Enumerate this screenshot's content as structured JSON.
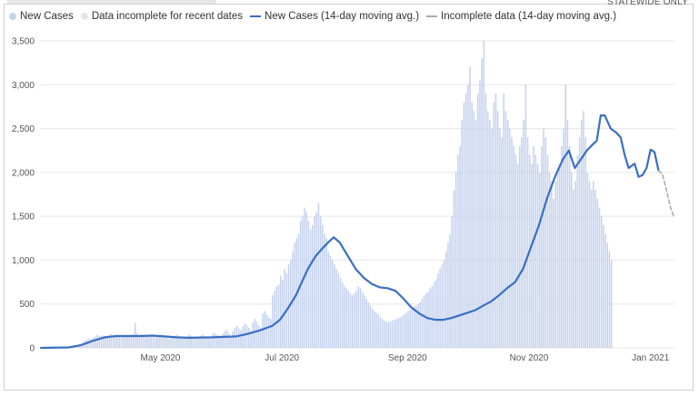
{
  "header": {
    "corner_label": "STATEWIDE ONLY"
  },
  "legend": [
    {
      "label": "New Cases",
      "kind": "dot",
      "color": "#c5d2ee"
    },
    {
      "label": "Data incomplete for recent dates",
      "kind": "dot",
      "color": "#e3e6ee"
    },
    {
      "label": "New Cases (14-day moving avg.)",
      "kind": "line",
      "color": "#3a6fc4"
    },
    {
      "label": "Incomplete data (14-day moving avg.)",
      "kind": "dash",
      "color": "#aaaaaa"
    }
  ],
  "colors": {
    "bar": "#c5d2ee",
    "bar_incomplete": "#e3e6ee",
    "line": "#3a6fc4",
    "line_incomplete": "#aaaaaa",
    "grid": "#e6e6e6"
  },
  "chart_data": {
    "type": "bar",
    "title": "",
    "xlabel": "",
    "ylabel": "",
    "ylim": [
      0,
      3500
    ],
    "yticks": [
      0,
      500,
      1000,
      1500,
      2000,
      2500,
      3000,
      3500
    ],
    "ytick_labels": [
      "0",
      "500",
      "1,000",
      "1,500",
      "2,000",
      "2,500",
      "3,000",
      "3,500"
    ],
    "x_ticks": [
      {
        "label": "May 2020",
        "day": 60
      },
      {
        "label": "Jul 2020",
        "day": 121
      },
      {
        "label": "Sep 2020",
        "day": 184
      },
      {
        "label": "Nov 2020",
        "day": 245
      },
      {
        "label": "Jan 2021",
        "day": 306
      }
    ],
    "x_range_days": [
      0,
      318
    ],
    "incomplete_from_day": 310,
    "series": [
      {
        "name": "New Cases (14-day moving avg.)",
        "type": "line",
        "points": [
          [
            0,
            0
          ],
          [
            14,
            5
          ],
          [
            20,
            30
          ],
          [
            26,
            80
          ],
          [
            32,
            120
          ],
          [
            38,
            135
          ],
          [
            44,
            135
          ],
          [
            50,
            135
          ],
          [
            56,
            140
          ],
          [
            62,
            130
          ],
          [
            68,
            120
          ],
          [
            74,
            115
          ],
          [
            80,
            118
          ],
          [
            86,
            120
          ],
          [
            92,
            125
          ],
          [
            98,
            130
          ],
          [
            104,
            160
          ],
          [
            110,
            200
          ],
          [
            116,
            250
          ],
          [
            120,
            320
          ],
          [
            124,
            450
          ],
          [
            128,
            600
          ],
          [
            131,
            750
          ],
          [
            134,
            900
          ],
          [
            138,
            1050
          ],
          [
            142,
            1150
          ],
          [
            145,
            1220
          ],
          [
            147,
            1260
          ],
          [
            150,
            1200
          ],
          [
            154,
            1050
          ],
          [
            158,
            900
          ],
          [
            162,
            800
          ],
          [
            166,
            730
          ],
          [
            170,
            690
          ],
          [
            174,
            680
          ],
          [
            178,
            650
          ],
          [
            182,
            560
          ],
          [
            186,
            460
          ],
          [
            190,
            390
          ],
          [
            194,
            340
          ],
          [
            198,
            320
          ],
          [
            202,
            320
          ],
          [
            206,
            340
          ],
          [
            210,
            370
          ],
          [
            214,
            400
          ],
          [
            218,
            430
          ],
          [
            222,
            480
          ],
          [
            226,
            530
          ],
          [
            230,
            600
          ],
          [
            234,
            680
          ],
          [
            238,
            750
          ],
          [
            242,
            900
          ],
          [
            246,
            1150
          ],
          [
            250,
            1400
          ],
          [
            254,
            1700
          ],
          [
            258,
            1950
          ],
          [
            262,
            2150
          ],
          [
            265,
            2250
          ],
          [
            268,
            2050
          ],
          [
            271,
            2150
          ],
          [
            274,
            2250
          ],
          [
            277,
            2320
          ],
          [
            279,
            2360
          ],
          [
            281,
            2650
          ],
          [
            283,
            2650
          ],
          [
            286,
            2500
          ],
          [
            289,
            2450
          ],
          [
            291,
            2400
          ],
          [
            293,
            2200
          ],
          [
            295,
            2050
          ],
          [
            298,
            2100
          ],
          [
            300,
            1950
          ],
          [
            302,
            1970
          ],
          [
            304,
            2050
          ],
          [
            306,
            2260
          ],
          [
            308,
            2230
          ],
          [
            310,
            2020
          ]
        ]
      },
      {
        "name": "Incomplete data (14-day moving avg.)",
        "type": "line",
        "points": [
          [
            310,
            2020
          ],
          [
            312,
            1980
          ],
          [
            314,
            1800
          ],
          [
            316,
            1600
          ],
          [
            318,
            1480
          ]
        ]
      },
      {
        "name": "New Cases",
        "type": "bar",
        "values": [
          0,
          0,
          0,
          0,
          0,
          0,
          0,
          0,
          0,
          0,
          0,
          0,
          0,
          0,
          5,
          10,
          15,
          25,
          35,
          45,
          55,
          70,
          85,
          95,
          110,
          100,
          120,
          130,
          150,
          140,
          135,
          140,
          130,
          120,
          150,
          160,
          140,
          130,
          140,
          135,
          150,
          145,
          130,
          140,
          145,
          150,
          160,
          280,
          170,
          140,
          160,
          150,
          130,
          140,
          145,
          150,
          130,
          120,
          135,
          140,
          145,
          120,
          130,
          110,
          100,
          120,
          130,
          140,
          150,
          130,
          100,
          120,
          110,
          130,
          150,
          140,
          130,
          120,
          110,
          120,
          140,
          150,
          130,
          110,
          120,
          130,
          160,
          170,
          150,
          140,
          130,
          160,
          190,
          200,
          170,
          140,
          190,
          230,
          250,
          220,
          200,
          240,
          280,
          260,
          230,
          200,
          290,
          330,
          300,
          260,
          230,
          390,
          420,
          380,
          350,
          330,
          600,
          650,
          700,
          720,
          820,
          780,
          900,
          850,
          950,
          1000,
          1100,
          1200,
          1250,
          1300,
          1450,
          1500,
          1600,
          1550,
          1450,
          1350,
          1400,
          1500,
          1550,
          1650,
          1500,
          1400,
          1300,
          1250,
          1100,
          1050,
          1000,
          950,
          900,
          850,
          800,
          750,
          700,
          680,
          650,
          620,
          600,
          620,
          650,
          700,
          680,
          640,
          600,
          560,
          520,
          480,
          450,
          420,
          400,
          380,
          350,
          330,
          310,
          300,
          290,
          300,
          310,
          320,
          330,
          340,
          350,
          360,
          380,
          400,
          420,
          440,
          460,
          470,
          480,
          500,
          520,
          560,
          600,
          620,
          640,
          680,
          700,
          750,
          780,
          850,
          900,
          950,
          1000,
          1100,
          1200,
          1300,
          1500,
          1800,
          2000,
          2200,
          2300,
          2600,
          2800,
          2900,
          3000,
          3200,
          2800,
          2700,
          2600,
          2900,
          3050,
          3300,
          3500,
          2900,
          2700,
          2600,
          2500,
          2800,
          2900,
          2700,
          2500,
          2400,
          2900,
          2700,
          2600,
          2500,
          2400,
          2300,
          2200,
          2100,
          2300,
          2400,
          2600,
          3000,
          2400,
          2200,
          2100,
          2300,
          2200,
          2100,
          2000,
          2300,
          2500,
          2400,
          2200,
          2000,
          1900,
          1700,
          1900,
          2000,
          2100,
          2300,
          2500,
          3000,
          2600,
          2300,
          2000,
          1800,
          1900,
          2200,
          2400,
          2600,
          2700,
          2400,
          2000,
          1900,
          1800,
          1900,
          1800,
          1700,
          1600,
          1500,
          1400,
          1300,
          1200,
          1100,
          1000
        ]
      }
    ]
  }
}
